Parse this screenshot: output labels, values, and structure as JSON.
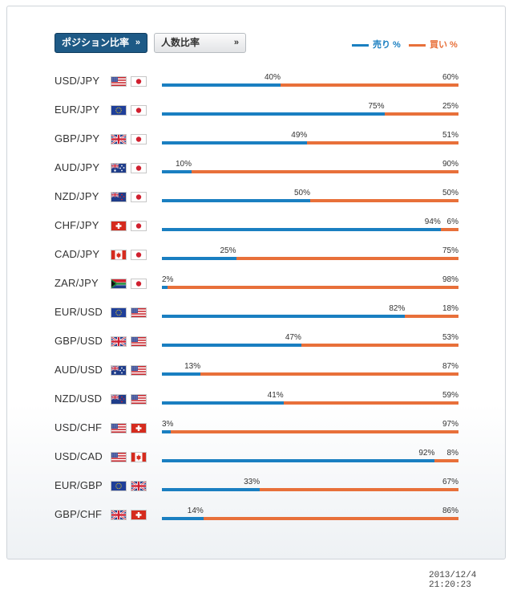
{
  "colors": {
    "sell": "#1a7fc1",
    "buy": "#e8703a",
    "tab_active": "#1e5a86"
  },
  "tabs": {
    "position_ratio": "ポジション比率",
    "position_ratio_icon": "double-chevron-down-icon",
    "people_ratio": "人数比率",
    "people_ratio_icon": "double-chevron-right-icon"
  },
  "legend": {
    "sell_label": "売り %",
    "buy_label": "買い %"
  },
  "chart_data": {
    "type": "bar",
    "orientation": "horizontal",
    "stacked": true,
    "normalized_to": 100,
    "title": "",
    "categories": [
      "USD/JPY",
      "EUR/JPY",
      "GBP/JPY",
      "AUD/JPY",
      "NZD/JPY",
      "CHF/JPY",
      "CAD/JPY",
      "ZAR/JPY",
      "EUR/USD",
      "GBP/USD",
      "AUD/USD",
      "NZD/USD",
      "USD/CHF",
      "USD/CAD",
      "EUR/GBP",
      "GBP/CHF"
    ],
    "flags": [
      [
        "us",
        "jp"
      ],
      [
        "eu",
        "jp"
      ],
      [
        "gb",
        "jp"
      ],
      [
        "au",
        "jp"
      ],
      [
        "nz",
        "jp"
      ],
      [
        "ch",
        "jp"
      ],
      [
        "ca",
        "jp"
      ],
      [
        "za",
        "jp"
      ],
      [
        "eu",
        "us"
      ],
      [
        "gb",
        "us"
      ],
      [
        "au",
        "us"
      ],
      [
        "nz",
        "us"
      ],
      [
        "us",
        "ch"
      ],
      [
        "us",
        "ca"
      ],
      [
        "eu",
        "gb"
      ],
      [
        "gb",
        "ch"
      ]
    ],
    "series": [
      {
        "name": "売り %",
        "values": [
          40,
          75,
          49,
          10,
          50,
          94,
          25,
          2,
          82,
          47,
          13,
          41,
          3,
          92,
          33,
          14
        ]
      },
      {
        "name": "買い %",
        "values": [
          60,
          25,
          51,
          90,
          50,
          6,
          75,
          98,
          18,
          53,
          87,
          59,
          97,
          8,
          67,
          86
        ]
      }
    ],
    "value_suffix": "%",
    "legend": "top-right"
  },
  "timestamp": "2013/12/4 21:20:23"
}
